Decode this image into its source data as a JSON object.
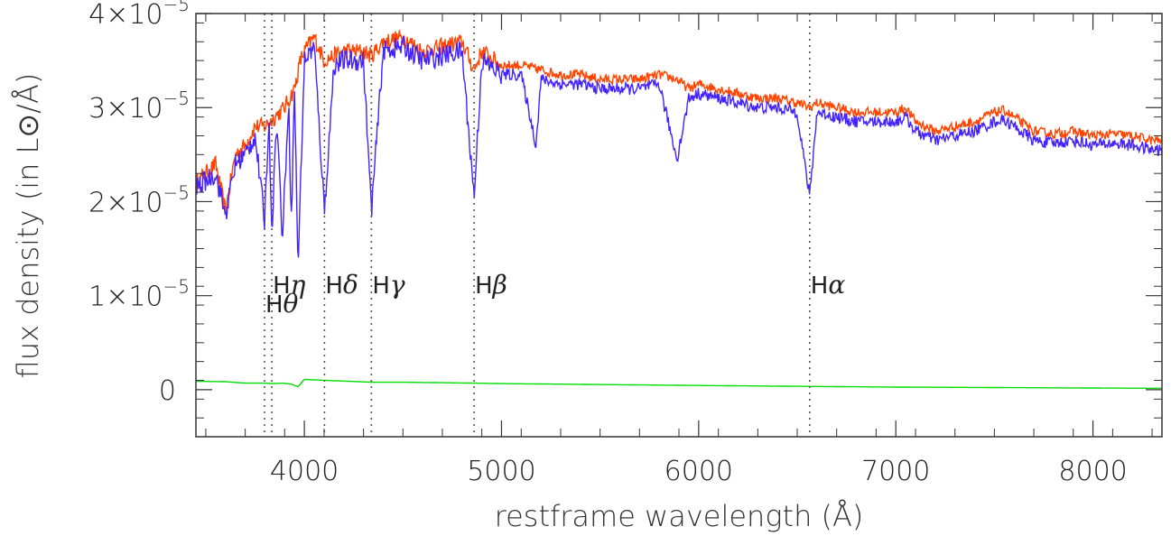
{
  "chart_data": {
    "type": "line",
    "xlabel": "restframe wavelength (Å)",
    "ylabel": "flux density (in L⊙/Å)",
    "xlim": [
      3450,
      8350
    ],
    "ylim": [
      -5e-06,
      4e-05
    ],
    "x_ticks": [
      {
        "value": 4000,
        "label": "4000"
      },
      {
        "value": 5000,
        "label": "5000"
      },
      {
        "value": 6000,
        "label": "6000"
      },
      {
        "value": 7000,
        "label": "7000"
      },
      {
        "value": 8000,
        "label": "8000"
      }
    ],
    "y_ticks": [
      {
        "value": 0,
        "mantissa": "0",
        "exp": ""
      },
      {
        "value": 1e-05,
        "mantissa": "1×10",
        "exp": "−5"
      },
      {
        "value": 2e-05,
        "mantissa": "2×10",
        "exp": "−5"
      },
      {
        "value": 3e-05,
        "mantissa": "3×10",
        "exp": "−5"
      },
      {
        "value": 4e-05,
        "mantissa": "4×10",
        "exp": "−5"
      }
    ],
    "lines": [
      {
        "name": "Hθ",
        "value": 3798,
        "label_y": 9e-06
      },
      {
        "name": "Hη",
        "value": 3835,
        "label_y": 1.1e-05
      },
      {
        "name": "Hδ",
        "value": 4102,
        "label_y": 1.1e-05
      },
      {
        "name": "Hγ",
        "value": 4340,
        "label_y": 1.1e-05
      },
      {
        "name": "Hβ",
        "value": 4861,
        "label_y": 1.1e-05
      },
      {
        "name": "Hα",
        "value": 6563,
        "label_y": 1.1e-05
      }
    ],
    "series": [
      {
        "color": "#ff4400",
        "style": "upper",
        "x": [
          3450,
          3550,
          3600,
          3650,
          3700,
          3750,
          3800,
          3850,
          3900,
          3950,
          3980,
          4000,
          4050,
          4100,
          4150,
          4200,
          4300,
          4340,
          4400,
          4500,
          4600,
          4700,
          4800,
          4861,
          4900,
          5000,
          5100,
          5200,
          5300,
          5400,
          5500,
          5600,
          5700,
          5800,
          5890,
          5950,
          6000,
          6100,
          6200,
          6300,
          6400,
          6500,
          6563,
          6600,
          6700,
          6800,
          6900,
          7000,
          7050,
          7100,
          7200,
          7300,
          7400,
          7500,
          7550,
          7600,
          7700,
          7800,
          7900,
          8000,
          8100,
          8200,
          8300,
          8350
        ],
        "y": [
          2.2e-05,
          2.4e-05,
          1.9e-05,
          2.5e-05,
          2.6e-05,
          2.8e-05,
          2.8e-05,
          2.9e-05,
          3e-05,
          3.2e-05,
          3.5e-05,
          3.6e-05,
          3.75e-05,
          3.5e-05,
          3.55e-05,
          3.6e-05,
          3.6e-05,
          3.55e-05,
          3.7e-05,
          3.75e-05,
          3.6e-05,
          3.65e-05,
          3.7e-05,
          3.4e-05,
          3.6e-05,
          3.45e-05,
          3.45e-05,
          3.4e-05,
          3.35e-05,
          3.35e-05,
          3.3e-05,
          3.3e-05,
          3.3e-05,
          3.35e-05,
          3.3e-05,
          3.2e-05,
          3.25e-05,
          3.2e-05,
          3.15e-05,
          3.1e-05,
          3.1e-05,
          3.05e-05,
          3e-05,
          3.05e-05,
          3e-05,
          2.95e-05,
          2.95e-05,
          2.95e-05,
          3e-05,
          2.85e-05,
          2.75e-05,
          2.8e-05,
          2.85e-05,
          2.95e-05,
          2.97e-05,
          2.9e-05,
          2.75e-05,
          2.72e-05,
          2.75e-05,
          2.7e-05,
          2.72e-05,
          2.7e-05,
          2.65e-05,
          2.65e-05
        ]
      },
      {
        "color": "#4422ff",
        "style": "main",
        "x": [
          3450,
          3550,
          3600,
          3650,
          3700,
          3750,
          3798,
          3820,
          3835,
          3860,
          3889,
          3920,
          3934,
          3950,
          3968,
          4000,
          4050,
          4102,
          4150,
          4200,
          4300,
          4340,
          4400,
          4500,
          4600,
          4700,
          4800,
          4861,
          4900,
          5000,
          5100,
          5175,
          5200,
          5300,
          5400,
          5500,
          5600,
          5700,
          5800,
          5890,
          5950,
          6000,
          6100,
          6200,
          6300,
          6400,
          6500,
          6563,
          6600,
          6700,
          6800,
          6900,
          7000,
          7050,
          7100,
          7200,
          7300,
          7400,
          7500,
          7550,
          7600,
          7700,
          7800,
          7900,
          8000,
          8100,
          8200,
          8300,
          8350
        ],
        "y": [
          2.15e-05,
          2.3e-05,
          1.85e-05,
          2.4e-05,
          2.5e-05,
          2.7e-05,
          1.8e-05,
          2.9e-05,
          1.7e-05,
          2.9e-05,
          1.6e-05,
          3.1e-05,
          1.8e-05,
          3.2e-05,
          1.3e-05,
          3.5e-05,
          3.65e-05,
          1.9e-05,
          3.45e-05,
          3.5e-05,
          3.5e-05,
          1.9e-05,
          3.6e-05,
          3.65e-05,
          3.5e-05,
          3.55e-05,
          3.6e-05,
          2.05e-05,
          3.5e-05,
          3.35e-05,
          3.35e-05,
          2.6e-05,
          3.3e-05,
          3.25e-05,
          3.25e-05,
          3.2e-05,
          3.2e-05,
          3.2e-05,
          3.25e-05,
          2.45e-05,
          3.1e-05,
          3.15e-05,
          3.1e-05,
          3.05e-05,
          3e-05,
          3e-05,
          2.95e-05,
          2.05e-05,
          2.95e-05,
          2.9e-05,
          2.85e-05,
          2.85e-05,
          2.85e-05,
          2.9e-05,
          2.75e-05,
          2.65e-05,
          2.7e-05,
          2.75e-05,
          2.85e-05,
          2.87e-05,
          2.8e-05,
          2.65e-05,
          2.62e-05,
          2.65e-05,
          2.6e-05,
          2.62e-05,
          2.6e-05,
          2.55e-05,
          2.55e-05
        ]
      },
      {
        "color": "#00dd00",
        "style": "thin",
        "x": [
          3450,
          3600,
          3700,
          3800,
          3835,
          3889,
          3934,
          3968,
          4000,
          4100,
          4340,
          4500,
          4861,
          5000,
          6000,
          6563,
          7000,
          8000,
          8350
        ],
        "y": [
          9e-07,
          8.5e-07,
          7e-07,
          7e-07,
          6.5e-07,
          7e-07,
          6e-07,
          3e-07,
          1.1e-06,
          1e-06,
          8e-07,
          8e-07,
          7e-07,
          6.5e-07,
          4.5e-07,
          3.5e-07,
          2.8e-07,
          1.8e-07,
          1.5e-07
        ]
      }
    ]
  }
}
